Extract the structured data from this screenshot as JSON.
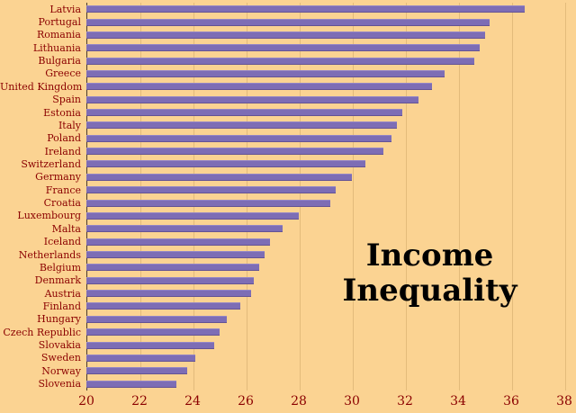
{
  "title": "Income Inequality",
  "colors": {
    "background": "#FBD392",
    "bar": "#7D6DB5",
    "label_text": "#8B0000",
    "title_text": "#000000"
  },
  "chart_data": {
    "type": "bar",
    "orientation": "horizontal",
    "title": "Income Inequality",
    "xlabel": "",
    "ylabel": "",
    "xlim": [
      20,
      38
    ],
    "xticks": [
      20,
      22,
      24,
      26,
      28,
      30,
      32,
      34,
      36,
      38
    ],
    "grid": true,
    "legend": "none",
    "categories": [
      "Latvia",
      "Portugal",
      "Romania",
      "Lithuania",
      "Bulgaria",
      "Greece",
      "United Kingdom",
      "Spain",
      "Estonia",
      "Italy",
      "Poland",
      "Ireland",
      "Switzerland",
      "Germany",
      "France",
      "Croatia",
      "Luxembourg",
      "Malta",
      "Iceland",
      "Netherlands",
      "Belgium",
      "Denmark",
      "Austria",
      "Finland",
      "Hungary",
      "Czech Republic",
      "Slovakia",
      "Sweden",
      "Norway",
      "Slovenia"
    ],
    "values": [
      36.5,
      35.2,
      35.0,
      34.8,
      34.6,
      33.5,
      33.0,
      32.5,
      31.9,
      31.7,
      31.5,
      31.2,
      30.5,
      30.0,
      29.4,
      29.2,
      28.0,
      27.4,
      26.9,
      26.7,
      26.5,
      26.3,
      26.2,
      25.8,
      25.3,
      25.0,
      24.8,
      24.1,
      23.8,
      23.4
    ]
  }
}
